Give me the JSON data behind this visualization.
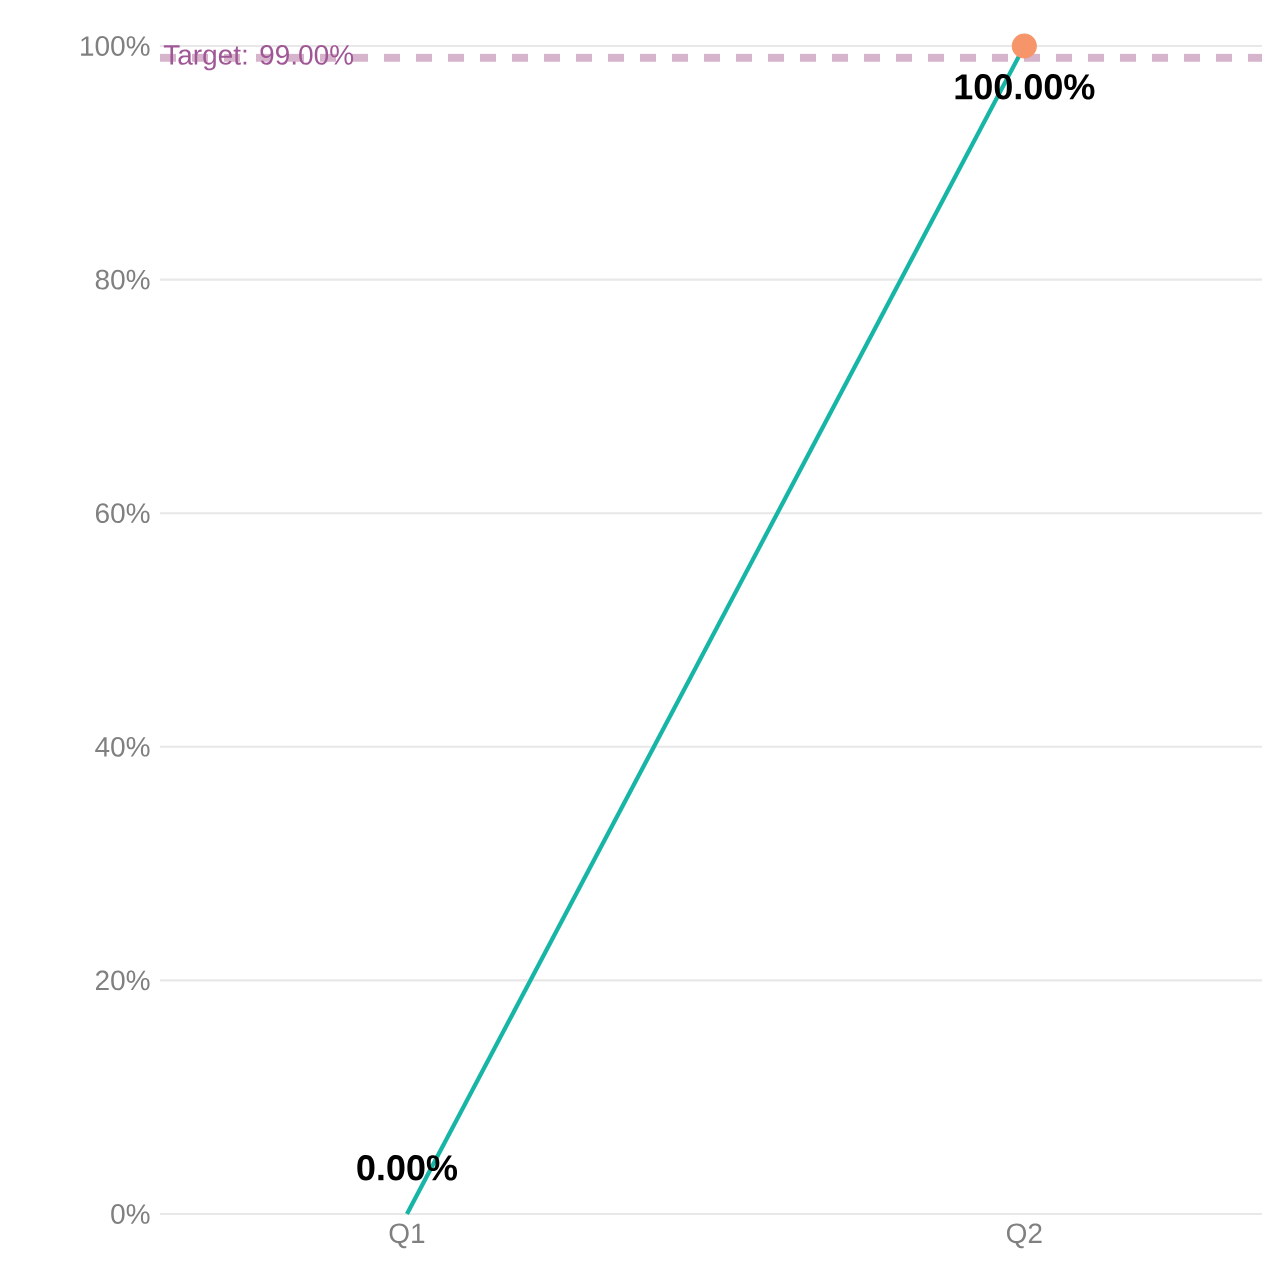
{
  "chart_data": {
    "type": "line",
    "categories": [
      "Q1",
      "Q2"
    ],
    "series": [
      {
        "color": "#17b5a6",
        "values": [
          0,
          100
        ],
        "value_labels": [
          "0.00%",
          "100.00%"
        ]
      },
      {
        "type": "scatter",
        "color": "#f7956a",
        "x": [
          "Q2"
        ],
        "values": [
          100
        ]
      }
    ],
    "ylim": [
      0,
      100
    ],
    "yticks": [
      {
        "value": 0,
        "label": "0%"
      },
      {
        "value": 20,
        "label": "20%"
      },
      {
        "value": 40,
        "label": "40%"
      },
      {
        "value": 60,
        "label": "60%"
      },
      {
        "value": 80,
        "label": "80%"
      },
      {
        "value": 100,
        "label": "100%"
      }
    ],
    "grid": "y",
    "ref_lines": [
      {
        "axis": "y",
        "value": 99,
        "label": "Target: 99.00%",
        "color": "#d6b4cb",
        "line_style": "dashed"
      }
    ]
  }
}
